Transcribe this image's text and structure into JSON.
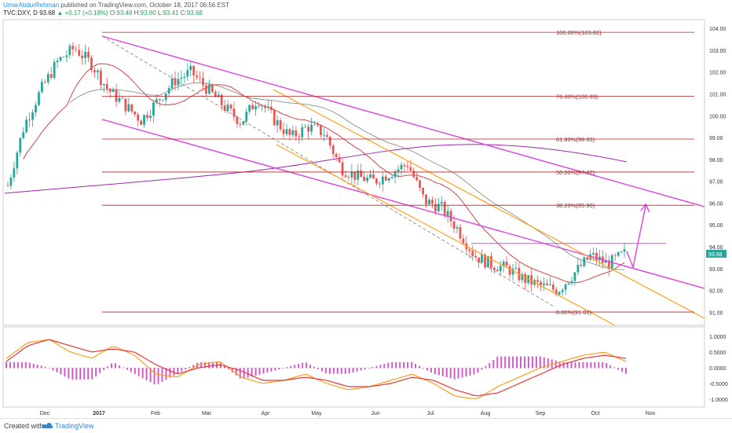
{
  "header": {
    "author": "UmarAbdurRehman",
    "published_text": "published on TradingView.com, October 18, 2017 06:56 EST",
    "symbol": "TVC:DXY, D",
    "last": "93.68",
    "change": "+0.17 (+0.18%)",
    "o_label": "O:",
    "o_value": "93.48",
    "h_label": "H:",
    "h_value": "93.80",
    "l_label": "L:",
    "l_value": "93.41",
    "c_label": "C:",
    "c_value": "93.68"
  },
  "footer": {
    "created_with": "Created with",
    "brand": "TradingView"
  },
  "colors": {
    "fib": "#b22222",
    "channel": "#e040e0",
    "orange": "#ff9f1a",
    "ma_red": "#d32f2f",
    "ma_gray": "#8a8f8a",
    "ma_purple": "#9c27b0",
    "up": "#26a69a",
    "down": "#ef5350",
    "price_badge": "#26a69a"
  },
  "chart_data": [
    {
      "type": "candlestick",
      "symbol": "TVC:DXY",
      "interval": "D",
      "x_ticks": [
        "Dec",
        "2017",
        "Feb",
        "Mar",
        "Apr",
        "May",
        "Jun",
        "Jul",
        "Aug",
        "Sep",
        "Oct",
        "Nov"
      ],
      "y_ticks": [
        "104.00",
        "103.00",
        "102.00",
        "101.00",
        "100.00",
        "99.00",
        "98.00",
        "97.00",
        "96.00",
        "95.00",
        "94.00",
        "93.00",
        "92.00",
        "91.00"
      ],
      "ylim": [
        90.4,
        104.4
      ],
      "last_price": "93.68",
      "series_closes_approx": [
        96.8,
        99.6,
        101.2,
        102.5,
        103.1,
        102.4,
        101.2,
        100.5,
        99.8,
        100.7,
        101.6,
        102.0,
        101.2,
        100.4,
        99.7,
        100.8,
        99.8,
        99.0,
        99.5,
        99.2,
        97.6,
        97.2,
        97.0,
        97.4,
        97.8,
        96.1,
        95.8,
        94.8,
        93.6,
        93.2,
        93.0,
        92.5,
        92.2,
        92.0,
        92.8,
        93.6,
        93.2,
        93.68
      ],
      "fib_levels": [
        {
          "label": "100.00%(103.82)",
          "value": 103.82
        },
        {
          "label": "76.40%(100.89)",
          "value": 100.89
        },
        {
          "label": "61.80%(98.93)",
          "value": 98.93
        },
        {
          "label": "50.00%(97.42)",
          "value": 97.42
        },
        {
          "label": "38.20%(95.90)",
          "value": 95.9
        },
        {
          "label": "0.00%(91.01)",
          "value": 91.01
        }
      ],
      "horizontal_level": 94.15,
      "annotations": [
        "projection arrow up toward 95.9"
      ],
      "grid": false
    },
    {
      "type": "line",
      "indicator": "MACD",
      "y_ticks": [
        "1.0000",
        "0.5000",
        "0.0000",
        "-0.5000",
        "-1.0000"
      ],
      "ylim": [
        -1.25,
        1.3
      ],
      "macd_approx": [
        0.3,
        0.8,
        0.9,
        0.5,
        0.3,
        0.7,
        0.4,
        -0.2,
        -0.3,
        0.1,
        0.2,
        -0.3,
        -0.5,
        -0.4,
        -0.2,
        -0.5,
        -0.7,
        -0.6,
        -0.4,
        -0.2,
        -0.5,
        -0.9,
        -1.0,
        -0.6,
        -0.3,
        0.0,
        0.2,
        0.4,
        0.5,
        0.2
      ],
      "signal_approx": [
        0.2,
        0.7,
        0.9,
        0.7,
        0.5,
        0.6,
        0.5,
        0.1,
        -0.2,
        0.0,
        0.1,
        -0.1,
        -0.4,
        -0.4,
        -0.3,
        -0.4,
        -0.6,
        -0.6,
        -0.5,
        -0.3,
        -0.4,
        -0.7,
        -0.9,
        -0.8,
        -0.5,
        -0.2,
        0.1,
        0.3,
        0.4,
        0.3
      ]
    }
  ]
}
